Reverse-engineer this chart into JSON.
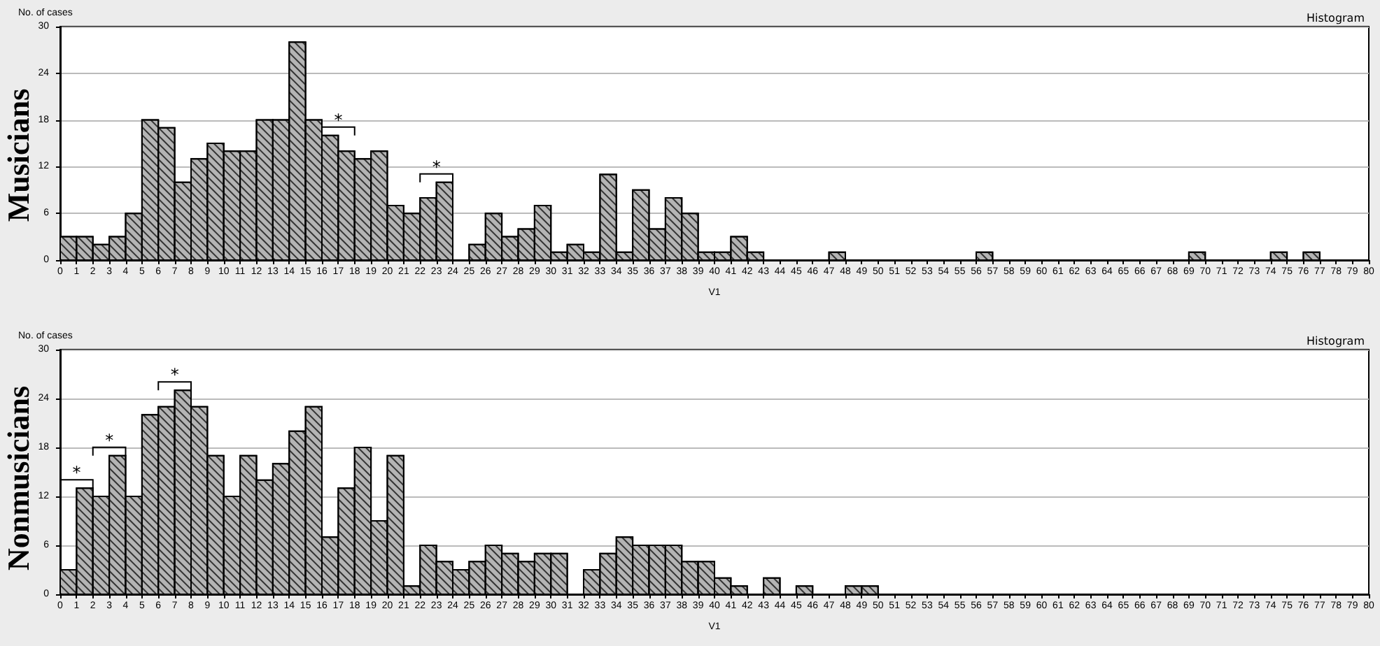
{
  "chart_data": [
    {
      "type": "histogram",
      "title": "Musicians",
      "subtitle": "Histogram",
      "ylabel": "No. of cases",
      "xlabel": "V1",
      "bins": [
        0,
        1,
        2,
        3,
        4,
        5,
        6,
        7,
        8,
        9,
        10,
        11,
        12,
        13,
        14,
        15,
        16,
        17,
        18,
        19,
        20,
        21,
        22,
        23,
        24,
        25,
        26,
        27,
        28,
        29,
        30,
        31,
        32,
        33,
        34,
        35,
        36,
        37,
        38,
        39,
        40,
        41,
        42,
        43,
        44,
        45,
        46,
        47,
        48,
        49,
        50,
        51,
        52,
        53,
        54,
        55,
        56,
        57,
        58,
        59,
        60,
        61,
        62,
        63,
        64,
        65,
        66,
        67,
        68,
        69,
        70,
        71,
        72,
        73,
        74,
        75,
        76,
        77,
        78,
        79,
        80
      ],
      "values": [
        3,
        3,
        2,
        3,
        6,
        18,
        17,
        10,
        13,
        15,
        14,
        14,
        18,
        18,
        28,
        18,
        16,
        14,
        13,
        14,
        7,
        6,
        8,
        10,
        0,
        2,
        6,
        3,
        4,
        7,
        1,
        2,
        1,
        11,
        1,
        9,
        4,
        8,
        6,
        1,
        1,
        3,
        1,
        0,
        0,
        0,
        0,
        1,
        0,
        0,
        0,
        0,
        0,
        0,
        0,
        0,
        1,
        0,
        0,
        0,
        0,
        0,
        0,
        0,
        0,
        0,
        0,
        0,
        0,
        1,
        0,
        0,
        0,
        0,
        1,
        0,
        1,
        0,
        0,
        0
      ],
      "color": "#b4b4b4",
      "xlim": [
        0,
        80
      ],
      "xticks": [
        0,
        1,
        2,
        3,
        4,
        5,
        6,
        7,
        8,
        9,
        10,
        11,
        12,
        13,
        14,
        15,
        16,
        17,
        18,
        19,
        20,
        21,
        22,
        23,
        24,
        25,
        26,
        27,
        28,
        29,
        30,
        31,
        32,
        33,
        34,
        35,
        36,
        37,
        38,
        39,
        40,
        41,
        42,
        43,
        44,
        45,
        46,
        47,
        48,
        49,
        50,
        51,
        52,
        53,
        54,
        55,
        56,
        57,
        58,
        59,
        60,
        61,
        62,
        63,
        64,
        65,
        66,
        67,
        68,
        69,
        70,
        71,
        72,
        73,
        74,
        75,
        76,
        77,
        78,
        79,
        80
      ],
      "ylim": [
        0,
        30
      ],
      "yticks": [
        0,
        6,
        12,
        18,
        24,
        30
      ],
      "grid": "y",
      "annotations": [
        {
          "text": "*",
          "x": 17,
          "y": 16
        },
        {
          "text": "*",
          "x": 23,
          "y": 10
        }
      ]
    },
    {
      "type": "histogram",
      "title": "Nonmusicians",
      "subtitle": "Histogram",
      "ylabel": "No. of cases",
      "xlabel": "V1",
      "bins": [
        0,
        1,
        2,
        3,
        4,
        5,
        6,
        7,
        8,
        9,
        10,
        11,
        12,
        13,
        14,
        15,
        16,
        17,
        18,
        19,
        20,
        21,
        22,
        23,
        24,
        25,
        26,
        27,
        28,
        29,
        30,
        31,
        32,
        33,
        34,
        35,
        36,
        37,
        38,
        39,
        40,
        41,
        42,
        43,
        44,
        45,
        46,
        47,
        48,
        49,
        50,
        51,
        52,
        53,
        54,
        55,
        56,
        57,
        58,
        59,
        60,
        61,
        62,
        63,
        64,
        65,
        66,
        67,
        68,
        69,
        70,
        71,
        72,
        73,
        74,
        75,
        76,
        77,
        78,
        79,
        80
      ],
      "values": [
        3,
        13,
        12,
        17,
        12,
        22,
        23,
        25,
        23,
        17,
        12,
        17,
        14,
        16,
        20,
        23,
        7,
        13,
        18,
        9,
        17,
        1,
        6,
        4,
        3,
        4,
        6,
        5,
        4,
        5,
        5,
        0,
        3,
        5,
        7,
        6,
        6,
        6,
        4,
        4,
        2,
        1,
        0,
        2,
        0,
        1,
        0,
        0,
        1,
        1,
        0,
        0,
        0,
        0,
        0,
        0,
        0,
        0,
        0,
        0,
        0,
        0,
        0,
        0,
        0,
        0,
        0,
        0,
        0,
        0,
        0,
        0,
        0,
        0,
        0,
        0,
        0,
        0,
        0,
        0
      ],
      "color": "#b4b4b4",
      "xlim": [
        0,
        80
      ],
      "xticks": [
        0,
        1,
        2,
        3,
        4,
        5,
        6,
        7,
        8,
        9,
        10,
        11,
        12,
        13,
        14,
        15,
        16,
        17,
        18,
        19,
        20,
        21,
        22,
        23,
        24,
        25,
        26,
        27,
        28,
        29,
        30,
        31,
        32,
        33,
        34,
        35,
        36,
        37,
        38,
        39,
        40,
        41,
        42,
        43,
        44,
        45,
        46,
        47,
        48,
        49,
        50,
        51,
        52,
        53,
        54,
        55,
        56,
        57,
        58,
        59,
        60,
        61,
        62,
        63,
        64,
        65,
        66,
        67,
        68,
        69,
        70,
        71,
        72,
        73,
        74,
        75,
        76,
        77,
        78,
        79,
        80
      ],
      "ylim": [
        0,
        30
      ],
      "yticks": [
        0,
        6,
        12,
        18,
        24,
        30
      ],
      "grid": "y",
      "annotations": [
        {
          "text": "*",
          "x": 1,
          "y": 13
        },
        {
          "text": "*",
          "x": 3,
          "y": 17
        },
        {
          "text": "*",
          "x": 7,
          "y": 25
        }
      ]
    }
  ]
}
